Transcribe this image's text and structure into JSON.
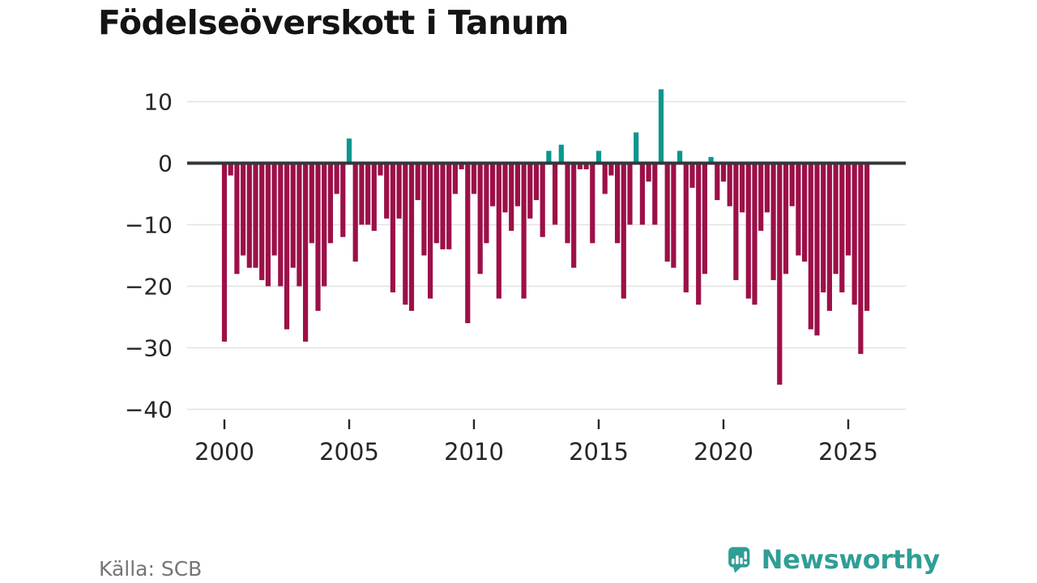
{
  "title": "Födelseöverskott i Tanum",
  "source_label": "Källa: SCB",
  "branding": {
    "logo_text": "Newsworthy",
    "logo_icon": "bar-chart-speech-bubble"
  },
  "colors": {
    "negative_bar": "#9c1048",
    "positive_bar": "#0b968e",
    "zero_line": "#32373b",
    "gridline": "#e2e2e2",
    "axis_text": "#262626",
    "source_text": "#757575",
    "brand_teal": "#2f9e96"
  },
  "chart_data": {
    "type": "bar",
    "title": "Födelseöverskott i Tanum",
    "xlabel": "",
    "ylabel": "",
    "frequency": "quarterly",
    "start_period": "2000 Q1",
    "end_period": "2025 Q4",
    "grid": true,
    "legend": false,
    "ylim": [
      -42,
      14
    ],
    "y_ticks": [
      10,
      0,
      -10,
      -20,
      -30,
      -40
    ],
    "y_tick_labels": [
      "10",
      "0",
      "−10",
      "−20",
      "−30",
      "−40"
    ],
    "x_tick_labels": [
      "2000",
      "2005",
      "2010",
      "2015",
      "2020",
      "2025"
    ],
    "values": [
      -29,
      -2,
      -18,
      -15,
      -17,
      -17,
      -19,
      -20,
      -15,
      -20,
      -27,
      -17,
      -20,
      -29,
      -13,
      -24,
      -20,
      -13,
      -5,
      -12,
      4,
      -16,
      -10,
      -10,
      -11,
      -2,
      -9,
      -21,
      -9,
      -23,
      -24,
      -6,
      -15,
      -22,
      -13,
      -14,
      -14,
      -5,
      -1,
      -26,
      -5,
      -18,
      -13,
      -7,
      -22,
      -8,
      -11,
      -7,
      -22,
      -9,
      -6,
      -12,
      2,
      -10,
      3,
      -13,
      -17,
      -1,
      -1,
      -13,
      2,
      -5,
      -2,
      -13,
      -22,
      -10,
      5,
      -10,
      -3,
      -10,
      12,
      -16,
      -17,
      2,
      -21,
      -4,
      -23,
      -18,
      1,
      -6,
      -3,
      -7,
      -19,
      -8,
      -22,
      -23,
      -11,
      -8,
      -19,
      -36,
      -18,
      -7,
      -15,
      -16,
      -27,
      -28,
      -21,
      -24,
      -18,
      -21,
      -15,
      -23,
      -31,
      -24
    ]
  }
}
